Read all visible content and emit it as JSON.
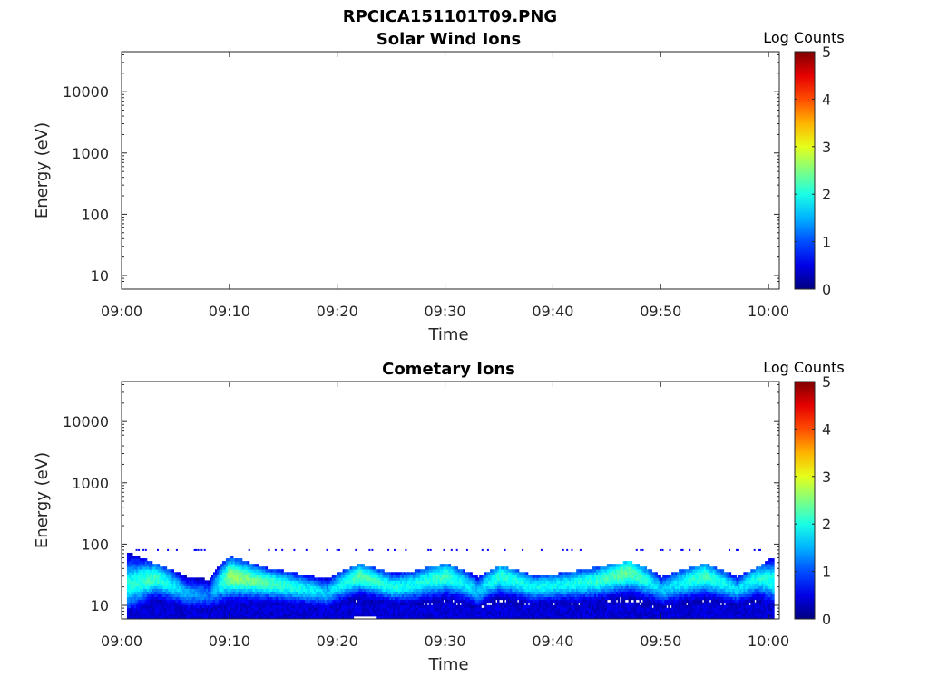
{
  "figure": {
    "title_line1": "RPCICA151101T09.PNG",
    "colors": {
      "axis": "#262626",
      "background": "#ffffff"
    }
  },
  "chart_data": [
    {
      "type": "heatmap",
      "title": "Solar Wind Ions",
      "xlabel": "Time",
      "ylabel": "Energy (eV)",
      "xticks": [
        "09:00",
        "09:10",
        "09:20",
        "09:30",
        "09:40",
        "09:50",
        "10:00"
      ],
      "xlim": [
        "09:00",
        "10:01"
      ],
      "yticks": [
        10,
        100,
        1000,
        10000
      ],
      "ylim": [
        6,
        45000
      ],
      "yscale": "log",
      "colorbar": {
        "label": "Log Counts",
        "ticks": [
          0,
          1,
          2,
          3,
          4,
          5
        ],
        "range": [
          0,
          5
        ],
        "colormap": "jet"
      },
      "grid": false,
      "data": []
    },
    {
      "type": "heatmap",
      "title": "Cometary Ions",
      "xlabel": "Time",
      "ylabel": "Energy (eV)",
      "xticks": [
        "09:00",
        "09:10",
        "09:20",
        "09:30",
        "09:40",
        "09:50",
        "10:00"
      ],
      "xlim": [
        "09:00",
        "10:01"
      ],
      "yticks": [
        10,
        100,
        1000,
        10000
      ],
      "ylim": [
        6,
        45000
      ],
      "yscale": "log",
      "colorbar": {
        "label": "Log Counts",
        "ticks": [
          0,
          1,
          2,
          3,
          4,
          5
        ],
        "range": [
          0,
          5
        ],
        "colormap": "jet"
      },
      "grid": false,
      "band_profile": [
        {
          "t": "09:00.5",
          "e_low": 9,
          "e_peak": 22,
          "e_high": 70,
          "peak_log": 2.0
        },
        {
          "t": "09:03",
          "e_low": 11,
          "e_peak": 28,
          "e_high": 45,
          "peak_log": 2.2
        },
        {
          "t": "09:06",
          "e_low": 9,
          "e_peak": 16,
          "e_high": 28,
          "peak_log": 1.5
        },
        {
          "t": "09:08",
          "e_low": 8,
          "e_peak": 15,
          "e_high": 25,
          "peak_log": 1.2
        },
        {
          "t": "09:10",
          "e_low": 11,
          "e_peak": 30,
          "e_high": 60,
          "peak_log": 2.6
        },
        {
          "t": "09:13",
          "e_low": 11,
          "e_peak": 24,
          "e_high": 40,
          "peak_log": 2.3
        },
        {
          "t": "09:16",
          "e_low": 10,
          "e_peak": 20,
          "e_high": 32,
          "peak_log": 2.0
        },
        {
          "t": "09:19",
          "e_low": 9,
          "e_peak": 16,
          "e_high": 26,
          "peak_log": 1.6
        },
        {
          "t": "09:22",
          "e_low": 12,
          "e_peak": 30,
          "e_high": 45,
          "peak_log": 2.3
        },
        {
          "t": "09:25",
          "e_low": 11,
          "e_peak": 20,
          "e_high": 32,
          "peak_log": 2.0
        },
        {
          "t": "09:27",
          "e_low": 10,
          "e_peak": 22,
          "e_high": 35,
          "peak_log": 1.9
        },
        {
          "t": "09:30",
          "e_low": 11,
          "e_peak": 30,
          "e_high": 45,
          "peak_log": 2.2
        },
        {
          "t": "09:33",
          "e_low": 9,
          "e_peak": 17,
          "e_high": 28,
          "peak_log": 1.6
        },
        {
          "t": "09:35",
          "e_low": 11,
          "e_peak": 30,
          "e_high": 42,
          "peak_log": 2.1
        },
        {
          "t": "09:38",
          "e_low": 10,
          "e_peak": 20,
          "e_high": 30,
          "peak_log": 1.9
        },
        {
          "t": "09:41",
          "e_low": 10,
          "e_peak": 22,
          "e_high": 32,
          "peak_log": 1.9
        },
        {
          "t": "09:44",
          "e_low": 11,
          "e_peak": 25,
          "e_high": 40,
          "peak_log": 2.1
        },
        {
          "t": "09:47",
          "e_low": 11,
          "e_peak": 35,
          "e_high": 50,
          "peak_log": 2.4
        },
        {
          "t": "09:50",
          "e_low": 9,
          "e_peak": 18,
          "e_high": 28,
          "peak_log": 1.6
        },
        {
          "t": "09:54",
          "e_low": 11,
          "e_peak": 30,
          "e_high": 45,
          "peak_log": 2.2
        },
        {
          "t": "09:57",
          "e_low": 10,
          "e_peak": 18,
          "e_high": 28,
          "peak_log": 1.7
        },
        {
          "t": "09:59",
          "e_low": 11,
          "e_peak": 28,
          "e_high": 40,
          "peak_log": 2.0
        },
        {
          "t": "10:00.5",
          "e_low": 11,
          "e_peak": 25,
          "e_high": 60,
          "peak_log": 2.0
        }
      ]
    }
  ]
}
